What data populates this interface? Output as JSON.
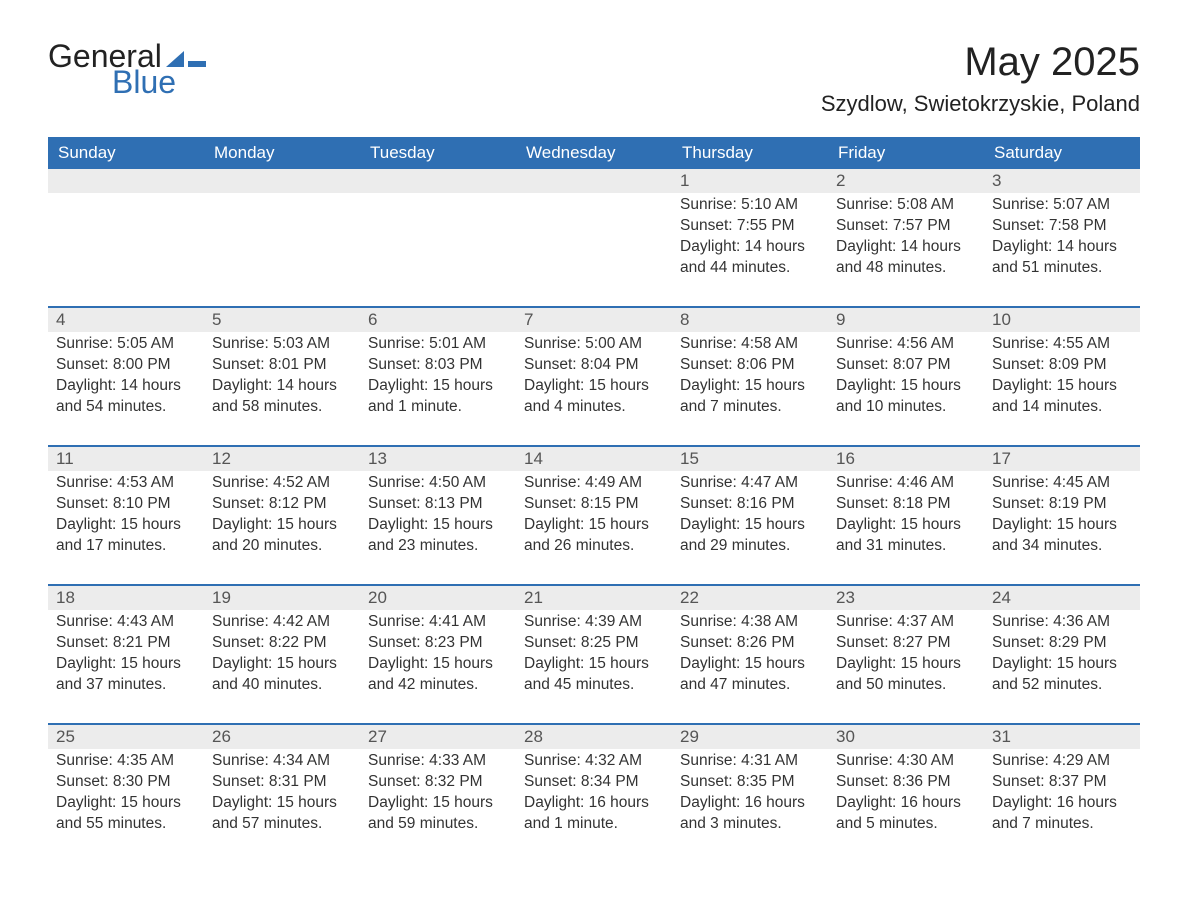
{
  "brand": {
    "word1": "General",
    "word2": "Blue"
  },
  "colors": {
    "accent": "#2f6fb3",
    "header_bg": "#2f6fb3",
    "header_text": "#ffffff",
    "daynum_bg": "#ececec",
    "text": "#333333",
    "bg": "#ffffff"
  },
  "title": "May 2025",
  "location": "Szydlow, Swietokrzyskie, Poland",
  "weekdays": [
    "Sunday",
    "Monday",
    "Tuesday",
    "Wednesday",
    "Thursday",
    "Friday",
    "Saturday"
  ],
  "layout": {
    "leading_blanks": 4,
    "days_in_month": 31
  },
  "labels": {
    "sunrise": "Sunrise: ",
    "sunset": "Sunset: ",
    "daylight": "Daylight: "
  },
  "days": {
    "1": {
      "sunrise": "5:10 AM",
      "sunset": "7:55 PM",
      "daylight": "14 hours and 44 minutes."
    },
    "2": {
      "sunrise": "5:08 AM",
      "sunset": "7:57 PM",
      "daylight": "14 hours and 48 minutes."
    },
    "3": {
      "sunrise": "5:07 AM",
      "sunset": "7:58 PM",
      "daylight": "14 hours and 51 minutes."
    },
    "4": {
      "sunrise": "5:05 AM",
      "sunset": "8:00 PM",
      "daylight": "14 hours and 54 minutes."
    },
    "5": {
      "sunrise": "5:03 AM",
      "sunset": "8:01 PM",
      "daylight": "14 hours and 58 minutes."
    },
    "6": {
      "sunrise": "5:01 AM",
      "sunset": "8:03 PM",
      "daylight": "15 hours and 1 minute."
    },
    "7": {
      "sunrise": "5:00 AM",
      "sunset": "8:04 PM",
      "daylight": "15 hours and 4 minutes."
    },
    "8": {
      "sunrise": "4:58 AM",
      "sunset": "8:06 PM",
      "daylight": "15 hours and 7 minutes."
    },
    "9": {
      "sunrise": "4:56 AM",
      "sunset": "8:07 PM",
      "daylight": "15 hours and 10 minutes."
    },
    "10": {
      "sunrise": "4:55 AM",
      "sunset": "8:09 PM",
      "daylight": "15 hours and 14 minutes."
    },
    "11": {
      "sunrise": "4:53 AM",
      "sunset": "8:10 PM",
      "daylight": "15 hours and 17 minutes."
    },
    "12": {
      "sunrise": "4:52 AM",
      "sunset": "8:12 PM",
      "daylight": "15 hours and 20 minutes."
    },
    "13": {
      "sunrise": "4:50 AM",
      "sunset": "8:13 PM",
      "daylight": "15 hours and 23 minutes."
    },
    "14": {
      "sunrise": "4:49 AM",
      "sunset": "8:15 PM",
      "daylight": "15 hours and 26 minutes."
    },
    "15": {
      "sunrise": "4:47 AM",
      "sunset": "8:16 PM",
      "daylight": "15 hours and 29 minutes."
    },
    "16": {
      "sunrise": "4:46 AM",
      "sunset": "8:18 PM",
      "daylight": "15 hours and 31 minutes."
    },
    "17": {
      "sunrise": "4:45 AM",
      "sunset": "8:19 PM",
      "daylight": "15 hours and 34 minutes."
    },
    "18": {
      "sunrise": "4:43 AM",
      "sunset": "8:21 PM",
      "daylight": "15 hours and 37 minutes."
    },
    "19": {
      "sunrise": "4:42 AM",
      "sunset": "8:22 PM",
      "daylight": "15 hours and 40 minutes."
    },
    "20": {
      "sunrise": "4:41 AM",
      "sunset": "8:23 PM",
      "daylight": "15 hours and 42 minutes."
    },
    "21": {
      "sunrise": "4:39 AM",
      "sunset": "8:25 PM",
      "daylight": "15 hours and 45 minutes."
    },
    "22": {
      "sunrise": "4:38 AM",
      "sunset": "8:26 PM",
      "daylight": "15 hours and 47 minutes."
    },
    "23": {
      "sunrise": "4:37 AM",
      "sunset": "8:27 PM",
      "daylight": "15 hours and 50 minutes."
    },
    "24": {
      "sunrise": "4:36 AM",
      "sunset": "8:29 PM",
      "daylight": "15 hours and 52 minutes."
    },
    "25": {
      "sunrise": "4:35 AM",
      "sunset": "8:30 PM",
      "daylight": "15 hours and 55 minutes."
    },
    "26": {
      "sunrise": "4:34 AM",
      "sunset": "8:31 PM",
      "daylight": "15 hours and 57 minutes."
    },
    "27": {
      "sunrise": "4:33 AM",
      "sunset": "8:32 PM",
      "daylight": "15 hours and 59 minutes."
    },
    "28": {
      "sunrise": "4:32 AM",
      "sunset": "8:34 PM",
      "daylight": "16 hours and 1 minute."
    },
    "29": {
      "sunrise": "4:31 AM",
      "sunset": "8:35 PM",
      "daylight": "16 hours and 3 minutes."
    },
    "30": {
      "sunrise": "4:30 AM",
      "sunset": "8:36 PM",
      "daylight": "16 hours and 5 minutes."
    },
    "31": {
      "sunrise": "4:29 AM",
      "sunset": "8:37 PM",
      "daylight": "16 hours and 7 minutes."
    }
  }
}
